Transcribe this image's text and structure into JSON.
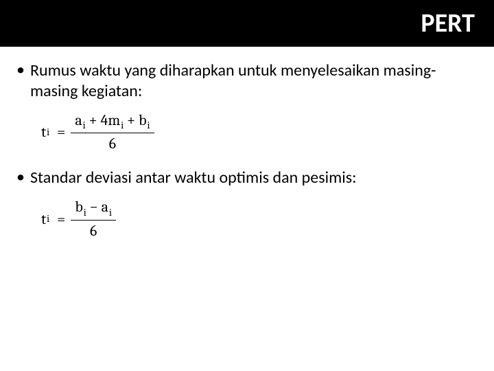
{
  "header": {
    "title": "PERT",
    "background_color": "#000000",
    "title_color": "#ffffff",
    "title_fontsize": 38
  },
  "bullets": {
    "item1": "Rumus waktu yang diharapkan untuk menyelesaikan masing-masing kegiatan:",
    "item2": "Standar deviasi antar waktu optimis dan pesimis:"
  },
  "formulas": {
    "f1": {
      "lhs_var": "t",
      "lhs_sub": "i",
      "num_parts": {
        "a_var": "a",
        "a_sub": "i",
        "middle": " + 4m",
        "m_sub": "i",
        "plus": " + ",
        "b_var": "b",
        "b_sub": "i"
      },
      "den": "6"
    },
    "f2": {
      "lhs_var": "t",
      "lhs_sub": "i",
      "num_parts": {
        "b_var": "b",
        "b_sub": "i",
        "minus": " − ",
        "a_var": "a",
        "a_sub": "i"
      },
      "den": "6"
    }
  },
  "style": {
    "body_fontsize": 24,
    "formula_fontsize": 22,
    "text_color": "#000000"
  }
}
